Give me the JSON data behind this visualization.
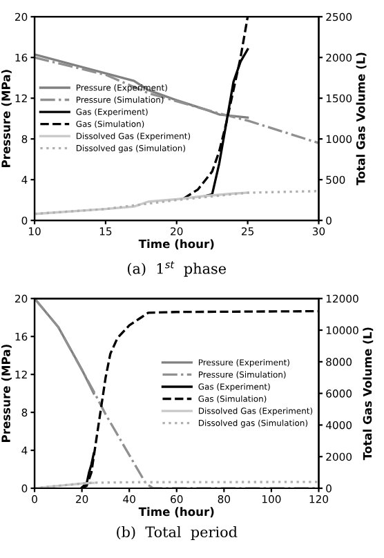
{
  "chart_data": [
    {
      "type": "line",
      "xlabel": "Time (hour)",
      "ylabel": "Pressure (MPa)",
      "y2label": "Total Gas Volume (L)",
      "xlim": [
        10,
        30
      ],
      "xticks": [
        10,
        15,
        20,
        25,
        30
      ],
      "ylim": [
        0,
        20
      ],
      "yticks": [
        0,
        4,
        8,
        12,
        16,
        20
      ],
      "y2lim": [
        0,
        2500
      ],
      "y2ticks": [
        0,
        500,
        1000,
        1500,
        2000,
        2500
      ],
      "legend": "left",
      "annotations": [
        "(a)  1$^{st}$  phase"
      ],
      "series": [
        {
          "name": "Pressure (Experiment)",
          "color": "#808080",
          "line_style": "solid",
          "x": [
            10,
            17,
            18,
            20,
            22,
            23,
            25
          ],
          "values": [
            16.3,
            13.7,
            12.8,
            11.8,
            10.9,
            10.4,
            10.1
          ]
        },
        {
          "name": "Pressure (Simulation)",
          "color": "#909090",
          "line_style": "dashdot",
          "x": [
            10,
            15,
            18,
            20,
            23,
            25,
            30
          ],
          "values": [
            16.0,
            14.3,
            12.5,
            11.7,
            10.5,
            9.8,
            7.6
          ]
        },
        {
          "name": "Gas (Experiment)",
          "color": "#000000",
          "line_style": "solid",
          "axis": "y2",
          "x": [
            22,
            22.5,
            23,
            23.5,
            24,
            24.5,
            25
          ],
          "values": [
            300,
            320,
            700,
            1200,
            1700,
            1950,
            2100
          ]
        },
        {
          "name": "Gas (Simulation)",
          "color": "#000000",
          "line_style": "dashed",
          "axis": "y2",
          "x": [
            20.5,
            21.5,
            22.5,
            23,
            23.5,
            24,
            24.5,
            25
          ],
          "values": [
            270,
            380,
            600,
            850,
            1200,
            1600,
            2000,
            2500
          ]
        },
        {
          "name": "Dissolved Gas (Experiment)",
          "color": "#c8c8c8",
          "line_style": "solid",
          "axis": "y2",
          "x": [
            10,
            15,
            17,
            18,
            20,
            22,
            24,
            25
          ],
          "values": [
            80,
            140,
            170,
            230,
            260,
            300,
            330,
            340
          ]
        },
        {
          "name": "Dissolved gas (Simulation)",
          "color": "#b0b0b0",
          "line_style": "dotted",
          "axis": "y2",
          "x": [
            10,
            15,
            20,
            25,
            30
          ],
          "values": [
            80,
            140,
            250,
            340,
            360
          ]
        }
      ]
    },
    {
      "type": "line",
      "xlabel": "Time (hour)",
      "ylabel": "Pressure (MPa)",
      "y2label": "Total Gas Volume (L)",
      "xlim": [
        0,
        120
      ],
      "xticks": [
        0,
        20,
        40,
        60,
        80,
        100,
        120
      ],
      "ylim": [
        0,
        20
      ],
      "yticks": [
        0,
        4,
        8,
        12,
        16,
        20
      ],
      "y2lim": [
        0,
        12000
      ],
      "y2ticks": [
        0,
        2000,
        4000,
        6000,
        8000,
        10000,
        12000
      ],
      "legend": "right",
      "annotations": [
        "(b)  Total  period"
      ],
      "series": [
        {
          "name": "Pressure (Experiment)",
          "color": "#808080",
          "line_style": "solid",
          "x": [
            0,
            10,
            20,
            25
          ],
          "values": [
            20,
            17,
            12.5,
            10
          ]
        },
        {
          "name": "Pressure (Simulation)",
          "color": "#909090",
          "line_style": "dashdot",
          "x": [
            0,
            10,
            25,
            30,
            40,
            47,
            50,
            120
          ],
          "values": [
            20,
            17,
            10.2,
            7.8,
            3.5,
            0.5,
            0,
            0
          ]
        },
        {
          "name": "Gas (Experiment)",
          "color": "#000000",
          "line_style": "solid",
          "axis": "y2",
          "x": [
            20,
            22,
            23,
            24,
            25
          ],
          "values": [
            50,
            300,
            1000,
            1500,
            2200
          ]
        },
        {
          "name": "Gas (Simulation)",
          "color": "#000000",
          "line_style": "dashed",
          "axis": "y2",
          "x": [
            20,
            22,
            24,
            26,
            28,
            30,
            32,
            35,
            40,
            45,
            48,
            60,
            120
          ],
          "values": [
            50,
            150,
            1000,
            3000,
            5000,
            7000,
            8500,
            9500,
            10300,
            10800,
            11100,
            11150,
            11200
          ]
        },
        {
          "name": "Dissolved Gas (Experiment)",
          "color": "#c8c8c8",
          "line_style": "solid",
          "axis": "y2",
          "x": [
            0,
            10,
            20,
            25
          ],
          "values": [
            0,
            150,
            300,
            340
          ]
        },
        {
          "name": "Dissolved gas (Simulation)",
          "color": "#b0b0b0",
          "line_style": "dotted",
          "axis": "y2",
          "x": [
            0,
            10,
            20,
            25,
            40,
            120
          ],
          "values": [
            0,
            150,
            300,
            350,
            380,
            400
          ]
        }
      ]
    }
  ]
}
